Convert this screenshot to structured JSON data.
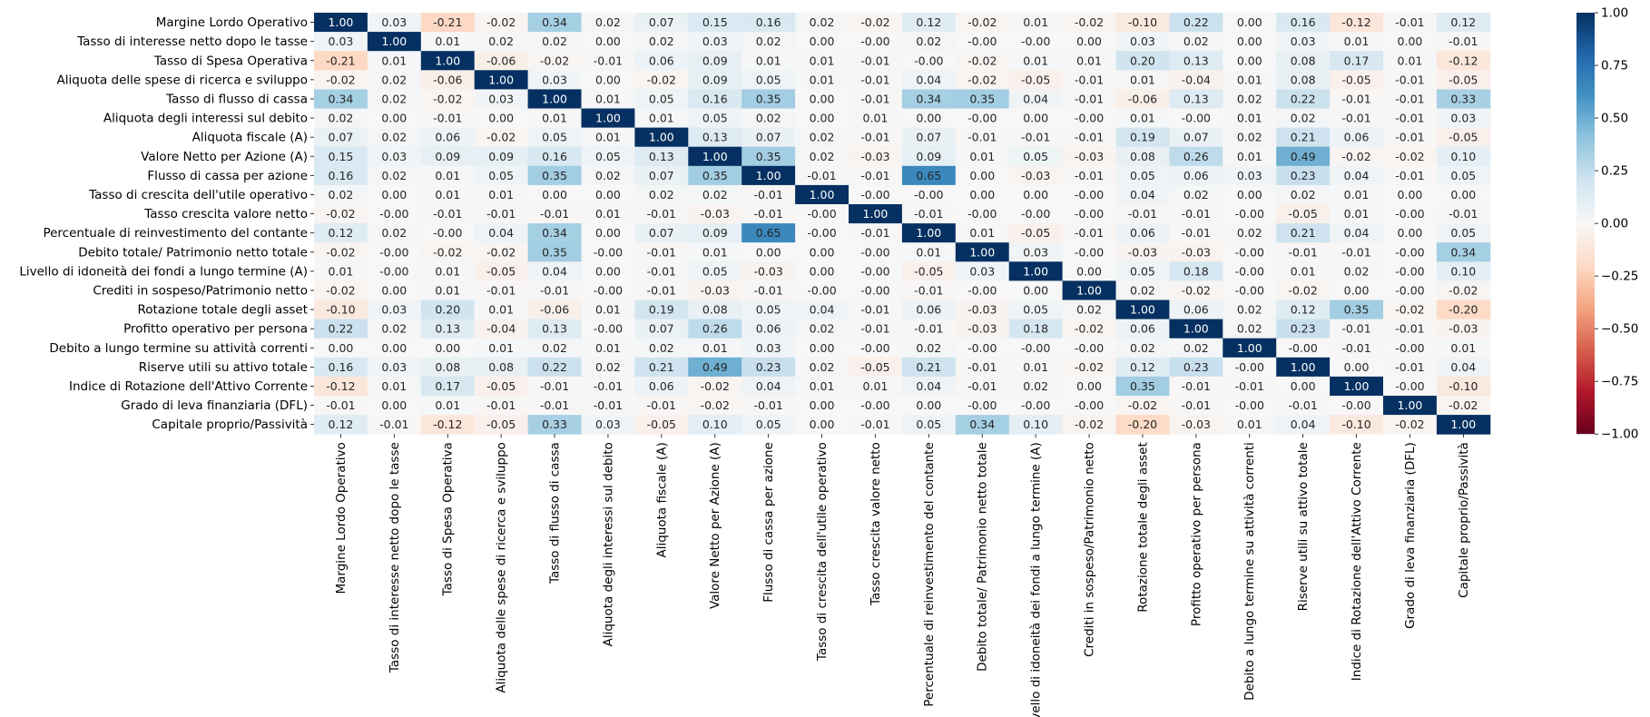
{
  "chart_data": {
    "type": "heatmap",
    "title": "",
    "xlabel": "",
    "ylabel": "",
    "labels": [
      "Margine Lordo Operativo",
      "Tasso di interesse netto dopo le tasse",
      "Tasso di Spesa Operativa",
      "Aliquota delle spese di ricerca e sviluppo",
      "Tasso di flusso di cassa",
      "Aliquota degli interessi sul debito",
      "Aliquota fiscale (A)",
      "Valore Netto per Azione (A)",
      "Flusso di cassa per azione",
      "Tasso di crescita dell'utile operativo",
      "Tasso crescita valore netto",
      "Percentuale di reinvestimento del contante",
      "Debito totale/ Patrimonio netto totale",
      "Livello di idoneità dei fondi a lungo termine (A)",
      "Crediti in sospeso/Patrimonio netto",
      "Rotazione totale degli asset",
      "Profitto operativo per persona",
      "Debito a lungo termine su attività correnti",
      "Riserve utili su attivo totale",
      "Indice di Rotazione dell'Attivo Corrente",
      "Grado di leva finanziaria (DFL)",
      "Capitale proprio/Passività"
    ],
    "values": [
      [
        "1.00",
        "0.03",
        "-0.21",
        "-0.02",
        "0.34",
        "0.02",
        "0.07",
        "0.15",
        "0.16",
        "0.02",
        "-0.02",
        "0.12",
        "-0.02",
        "0.01",
        "-0.02",
        "-0.10",
        "0.22",
        "0.00",
        "0.16",
        "-0.12",
        "-0.01",
        "0.12"
      ],
      [
        "0.03",
        "1.00",
        "0.01",
        "0.02",
        "0.02",
        "0.00",
        "0.02",
        "0.03",
        "0.02",
        "0.00",
        "-0.00",
        "0.02",
        "-0.00",
        "-0.00",
        "0.00",
        "0.03",
        "0.02",
        "0.00",
        "0.03",
        "0.01",
        "0.00",
        "-0.01"
      ],
      [
        "-0.21",
        "0.01",
        "1.00",
        "-0.06",
        "-0.02",
        "-0.01",
        "0.06",
        "0.09",
        "0.01",
        "0.01",
        "-0.01",
        "-0.00",
        "-0.02",
        "0.01",
        "0.01",
        "0.20",
        "0.13",
        "0.00",
        "0.08",
        "0.17",
        "0.01",
        "-0.12"
      ],
      [
        "-0.02",
        "0.02",
        "-0.06",
        "1.00",
        "0.03",
        "0.00",
        "-0.02",
        "0.09",
        "0.05",
        "0.01",
        "-0.01",
        "0.04",
        "-0.02",
        "-0.05",
        "-0.01",
        "0.01",
        "-0.04",
        "0.01",
        "0.08",
        "-0.05",
        "-0.01",
        "-0.05"
      ],
      [
        "0.34",
        "0.02",
        "-0.02",
        "0.03",
        "1.00",
        "0.01",
        "0.05",
        "0.16",
        "0.35",
        "0.00",
        "-0.01",
        "0.34",
        "0.35",
        "0.04",
        "-0.01",
        "-0.06",
        "0.13",
        "0.02",
        "0.22",
        "-0.01",
        "-0.01",
        "0.33"
      ],
      [
        "0.02",
        "0.00",
        "-0.01",
        "0.00",
        "0.01",
        "1.00",
        "0.01",
        "0.05",
        "0.02",
        "0.00",
        "0.01",
        "0.00",
        "-0.00",
        "0.00",
        "-0.00",
        "0.01",
        "-0.00",
        "0.01",
        "0.02",
        "-0.01",
        "-0.01",
        "0.03"
      ],
      [
        "0.07",
        "0.02",
        "0.06",
        "-0.02",
        "0.05",
        "0.01",
        "1.00",
        "0.13",
        "0.07",
        "0.02",
        "-0.01",
        "0.07",
        "-0.01",
        "-0.01",
        "-0.01",
        "0.19",
        "0.07",
        "0.02",
        "0.21",
        "0.06",
        "-0.01",
        "-0.05"
      ],
      [
        "0.15",
        "0.03",
        "0.09",
        "0.09",
        "0.16",
        "0.05",
        "0.13",
        "1.00",
        "0.35",
        "0.02",
        "-0.03",
        "0.09",
        "0.01",
        "0.05",
        "-0.03",
        "0.08",
        "0.26",
        "0.01",
        "0.49",
        "-0.02",
        "-0.02",
        "0.10"
      ],
      [
        "0.16",
        "0.02",
        "0.01",
        "0.05",
        "0.35",
        "0.02",
        "0.07",
        "0.35",
        "1.00",
        "-0.01",
        "-0.01",
        "0.65",
        "0.00",
        "-0.03",
        "-0.01",
        "0.05",
        "0.06",
        "0.03",
        "0.23",
        "0.04",
        "-0.01",
        "0.05"
      ],
      [
        "0.02",
        "0.00",
        "0.01",
        "0.01",
        "0.00",
        "0.00",
        "0.02",
        "0.02",
        "-0.01",
        "1.00",
        "-0.00",
        "-0.00",
        "0.00",
        "0.00",
        "-0.00",
        "0.04",
        "0.02",
        "0.00",
        "0.02",
        "0.01",
        "0.00",
        "0.00"
      ],
      [
        "-0.02",
        "-0.00",
        "-0.01",
        "-0.01",
        "-0.01",
        "0.01",
        "-0.01",
        "-0.03",
        "-0.01",
        "-0.00",
        "1.00",
        "-0.01",
        "-0.00",
        "-0.00",
        "-0.00",
        "-0.01",
        "-0.01",
        "-0.00",
        "-0.05",
        "0.01",
        "-0.00",
        "-0.01"
      ],
      [
        "0.12",
        "0.02",
        "-0.00",
        "0.04",
        "0.34",
        "0.00",
        "0.07",
        "0.09",
        "0.65",
        "-0.00",
        "-0.01",
        "1.00",
        "0.01",
        "-0.05",
        "-0.01",
        "0.06",
        "-0.01",
        "0.02",
        "0.21",
        "0.04",
        "0.00",
        "0.05"
      ],
      [
        "-0.02",
        "-0.00",
        "-0.02",
        "-0.02",
        "0.35",
        "-0.00",
        "-0.01",
        "0.01",
        "0.00",
        "0.00",
        "-0.00",
        "0.01",
        "1.00",
        "0.03",
        "-0.00",
        "-0.03",
        "-0.03",
        "-0.00",
        "-0.01",
        "-0.01",
        "-0.00",
        "0.34"
      ],
      [
        "0.01",
        "-0.00",
        "0.01",
        "-0.05",
        "0.04",
        "0.00",
        "-0.01",
        "0.05",
        "-0.03",
        "0.00",
        "-0.00",
        "-0.05",
        "0.03",
        "1.00",
        "0.00",
        "0.05",
        "0.18",
        "-0.00",
        "0.01",
        "0.02",
        "-0.00",
        "0.10"
      ],
      [
        "-0.02",
        "0.00",
        "0.01",
        "-0.01",
        "-0.01",
        "-0.00",
        "-0.01",
        "-0.03",
        "-0.01",
        "-0.00",
        "-0.00",
        "-0.01",
        "-0.00",
        "0.00",
        "1.00",
        "0.02",
        "-0.02",
        "-0.00",
        "-0.02",
        "0.00",
        "-0.00",
        "-0.02"
      ],
      [
        "-0.10",
        "0.03",
        "0.20",
        "0.01",
        "-0.06",
        "0.01",
        "0.19",
        "0.08",
        "0.05",
        "0.04",
        "-0.01",
        "0.06",
        "-0.03",
        "0.05",
        "0.02",
        "1.00",
        "0.06",
        "0.02",
        "0.12",
        "0.35",
        "-0.02",
        "-0.20"
      ],
      [
        "0.22",
        "0.02",
        "0.13",
        "-0.04",
        "0.13",
        "-0.00",
        "0.07",
        "0.26",
        "0.06",
        "0.02",
        "-0.01",
        "-0.01",
        "-0.03",
        "0.18",
        "-0.02",
        "0.06",
        "1.00",
        "0.02",
        "0.23",
        "-0.01",
        "-0.01",
        "-0.03"
      ],
      [
        "0.00",
        "0.00",
        "0.00",
        "0.01",
        "0.02",
        "0.01",
        "0.02",
        "0.01",
        "0.03",
        "0.00",
        "-0.00",
        "0.02",
        "-0.00",
        "-0.00",
        "-0.00",
        "0.02",
        "0.02",
        "1.00",
        "-0.00",
        "-0.01",
        "-0.00",
        "0.01"
      ],
      [
        "0.16",
        "0.03",
        "0.08",
        "0.08",
        "0.22",
        "0.02",
        "0.21",
        "0.49",
        "0.23",
        "0.02",
        "-0.05",
        "0.21",
        "-0.01",
        "0.01",
        "-0.02",
        "0.12",
        "0.23",
        "-0.00",
        "1.00",
        "0.00",
        "-0.01",
        "0.04"
      ],
      [
        "-0.12",
        "0.01",
        "0.17",
        "-0.05",
        "-0.01",
        "-0.01",
        "0.06",
        "-0.02",
        "0.04",
        "0.01",
        "0.01",
        "0.04",
        "-0.01",
        "0.02",
        "0.00",
        "0.35",
        "-0.01",
        "-0.01",
        "0.00",
        "1.00",
        "-0.00",
        "-0.10"
      ],
      [
        "-0.01",
        "0.00",
        "0.01",
        "-0.01",
        "-0.01",
        "-0.01",
        "-0.01",
        "-0.02",
        "-0.01",
        "0.00",
        "-0.00",
        "0.00",
        "-0.00",
        "-0.00",
        "-0.00",
        "-0.02",
        "-0.01",
        "-0.00",
        "-0.01",
        "-0.00",
        "1.00",
        "-0.02"
      ],
      [
        "0.12",
        "-0.01",
        "-0.12",
        "-0.05",
        "0.33",
        "0.03",
        "-0.05",
        "0.10",
        "0.05",
        "0.00",
        "-0.01",
        "0.05",
        "0.34",
        "0.10",
        "-0.02",
        "-0.20",
        "-0.03",
        "0.01",
        "0.04",
        "-0.10",
        "-0.02",
        "1.00"
      ]
    ],
    "vmin": -1.0,
    "vmax": 1.0,
    "colormap": "RdBu",
    "colorbar_ticks": [
      "1.00",
      "0.75",
      "0.50",
      "0.25",
      "0.00",
      "−0.25",
      "−0.50",
      "−0.75",
      "−1.00"
    ],
    "colorbar_tick_values": [
      1.0,
      0.75,
      0.5,
      0.25,
      0.0,
      -0.25,
      -0.5,
      -0.75,
      -1.0
    ],
    "legend": "right"
  }
}
